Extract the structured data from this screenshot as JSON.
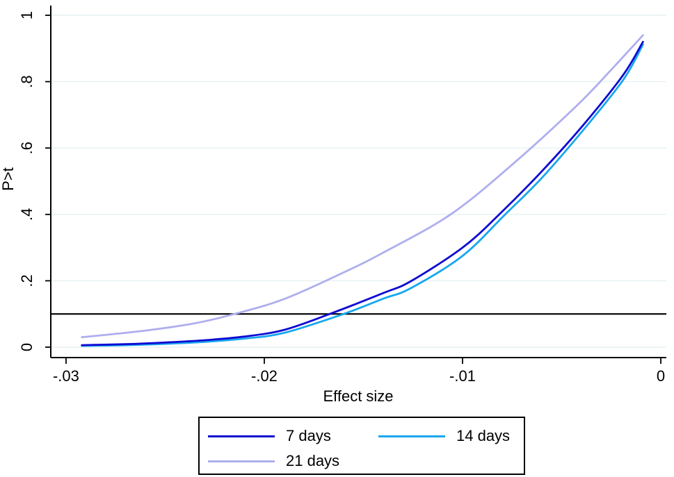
{
  "figure": {
    "background_color": "#ffffff",
    "axis_color": "#000000",
    "text_color": "#000000"
  },
  "chart_data": {
    "type": "line",
    "title": "",
    "xlabel": "Effect size",
    "ylabel": "P>t",
    "grid": true,
    "grid_color": "#e7f0f2",
    "legend_position": "bottom",
    "xlim": [
      -0.03077,
      0.00028
    ],
    "ylim": [
      -0.0314,
      1.0293
    ],
    "xticks": [
      {
        "v": -0.03,
        "label": "-.03"
      },
      {
        "v": -0.02,
        "label": "-.02"
      },
      {
        "v": -0.01,
        "label": "-.01"
      },
      {
        "v": 0,
        "label": "0"
      }
    ],
    "yticks": [
      {
        "v": 0,
        "label": "0"
      },
      {
        "v": 0.2,
        "label": ".2"
      },
      {
        "v": 0.4,
        "label": ".4"
      },
      {
        "v": 0.6,
        "label": ".6"
      },
      {
        "v": 0.8,
        "label": ".8"
      },
      {
        "v": 1,
        "label": "1"
      }
    ],
    "reference_line_y": 0.1,
    "reference_line_color": "#000000",
    "series": [
      {
        "name": "7 days",
        "color": "#0f0ad2",
        "points": [
          [
            -0.0292,
            0.006
          ],
          [
            -0.027,
            0.009
          ],
          [
            -0.025,
            0.014
          ],
          [
            -0.023,
            0.021
          ],
          [
            -0.021,
            0.032
          ],
          [
            -0.019,
            0.052
          ],
          [
            -0.0167,
            0.1
          ],
          [
            -0.014,
            0.163
          ],
          [
            -0.0126,
            0.199
          ],
          [
            -0.01,
            0.3
          ],
          [
            -0.0082,
            0.397
          ],
          [
            -0.006,
            0.53
          ],
          [
            -0.0039,
            0.67
          ],
          [
            -0.0019,
            0.82
          ],
          [
            -0.0009,
            0.92
          ]
        ]
      },
      {
        "name": "14 days",
        "color": "#18a7ee",
        "points": [
          [
            -0.0292,
            0.004
          ],
          [
            -0.027,
            0.006
          ],
          [
            -0.025,
            0.01
          ],
          [
            -0.023,
            0.016
          ],
          [
            -0.021,
            0.026
          ],
          [
            -0.019,
            0.043
          ],
          [
            -0.016,
            0.1
          ],
          [
            -0.014,
            0.146
          ],
          [
            -0.0126,
            0.178
          ],
          [
            -0.01,
            0.275
          ],
          [
            -0.0079,
            0.397
          ],
          [
            -0.006,
            0.51
          ],
          [
            -0.0039,
            0.655
          ],
          [
            -0.0019,
            0.805
          ],
          [
            -0.0009,
            0.912
          ]
        ]
      },
      {
        "name": "21 days",
        "color": "#aeaeee",
        "points": [
          [
            -0.0292,
            0.03
          ],
          [
            -0.026,
            0.05
          ],
          [
            -0.0235,
            0.072
          ],
          [
            -0.0215,
            0.1
          ],
          [
            -0.019,
            0.145
          ],
          [
            -0.016,
            0.225
          ],
          [
            -0.014,
            0.285
          ],
          [
            -0.0106,
            0.4
          ],
          [
            -0.0074,
            0.555
          ],
          [
            -0.0042,
            0.73
          ],
          [
            -0.0025,
            0.836
          ],
          [
            -0.0009,
            0.94
          ]
        ]
      }
    ]
  }
}
